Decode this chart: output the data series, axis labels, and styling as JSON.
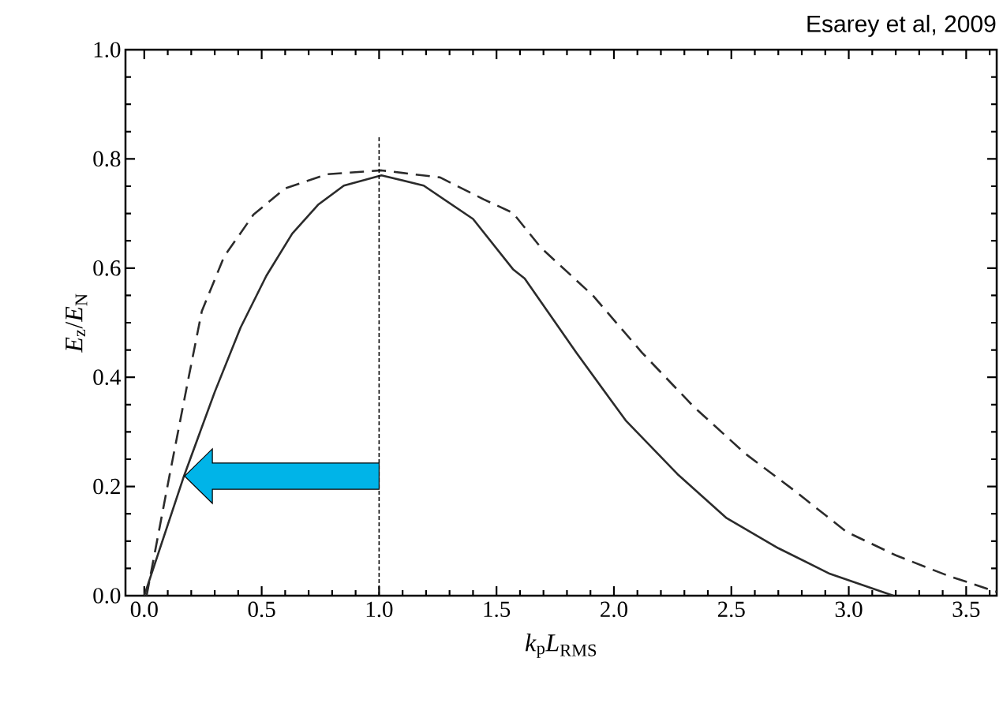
{
  "chart_data": {
    "type": "line",
    "xlabel": "*k*$_{p}$*L*$_{RMS}$",
    "ylabel": "*E*$_{z}$/*E*$_{N}$",
    "annotations": [
      "Esarey et al, 2009"
    ],
    "series": [
      {
        "color": "#2b2b2b",
        "line_style": "solid",
        "x": [
          0.0,
          0.169,
          0.3,
          0.41,
          0.52,
          0.63,
          0.74,
          0.85,
          1.01,
          1.19,
          1.4,
          1.57,
          1.62,
          1.84,
          2.05,
          2.27,
          2.48,
          2.7,
          2.92,
          3.19
        ],
        "values": [
          0.0,
          0.219,
          0.373,
          0.491,
          0.586,
          0.663,
          0.716,
          0.751,
          0.77,
          0.751,
          0.69,
          0.598,
          0.581,
          0.445,
          0.321,
          0.223,
          0.142,
          0.087,
          0.04,
          0.0
        ]
      },
      {
        "color": "#2b2b2b",
        "line_style": "dashed",
        "x": [
          0.01,
          0.107,
          0.19,
          0.245,
          0.34,
          0.465,
          0.6,
          0.78,
          1.01,
          1.26,
          1.445,
          1.57,
          1.69,
          1.91,
          2.12,
          2.34,
          2.56,
          2.77,
          2.99,
          3.2,
          3.42,
          3.63
        ],
        "values": [
          0.0,
          0.219,
          0.402,
          0.521,
          0.621,
          0.698,
          0.746,
          0.772,
          0.779,
          0.766,
          0.726,
          0.701,
          0.637,
          0.55,
          0.445,
          0.346,
          0.26,
          0.192,
          0.117,
          0.074,
          0.037,
          0.007
        ]
      }
    ],
    "ref_lines": [
      {
        "axis": "x",
        "value": 1.0,
        "color": "#000000",
        "line_style": "dashed"
      }
    ],
    "xlim": [
      -0.08,
      3.63
    ],
    "ylim": [
      0,
      1
    ],
    "xticks": [
      {
        "value": 0,
        "label": "0.0"
      },
      {
        "value": 0.1,
        "label": null
      },
      {
        "value": 0.2,
        "label": null
      },
      {
        "value": 0.3,
        "label": null
      },
      {
        "value": 0.4,
        "label": null
      },
      {
        "value": 0.5,
        "label": "0.5"
      },
      {
        "value": 0.6,
        "label": null
      },
      {
        "value": 0.7,
        "label": null
      },
      {
        "value": 0.8,
        "label": null
      },
      {
        "value": 0.9,
        "label": null
      },
      {
        "value": 1.0,
        "label": "1.0"
      },
      {
        "value": 1.1,
        "label": null
      },
      {
        "value": 1.2,
        "label": null
      },
      {
        "value": 1.3,
        "label": null
      },
      {
        "value": 1.4,
        "label": null
      },
      {
        "value": 1.5,
        "label": "1.5"
      },
      {
        "value": 1.6,
        "label": null
      },
      {
        "value": 1.7,
        "label": null
      },
      {
        "value": 1.8,
        "label": null
      },
      {
        "value": 1.9,
        "label": null
      },
      {
        "value": 2.0,
        "label": "2.0"
      },
      {
        "value": 2.1,
        "label": null
      },
      {
        "value": 2.2,
        "label": null
      },
      {
        "value": 2.3,
        "label": null
      },
      {
        "value": 2.4,
        "label": null
      },
      {
        "value": 2.5,
        "label": "2.5"
      },
      {
        "value": 2.6,
        "label": null
      },
      {
        "value": 2.7,
        "label": null
      },
      {
        "value": 2.8,
        "label": null
      },
      {
        "value": 2.9,
        "label": null
      },
      {
        "value": 3.0,
        "label": "3.0"
      },
      {
        "value": 3.1,
        "label": null
      },
      {
        "value": 3.2,
        "label": null
      },
      {
        "value": 3.3,
        "label": null
      },
      {
        "value": 3.4,
        "label": null
      },
      {
        "value": 3.5,
        "label": "3.5"
      },
      {
        "value": 3.6,
        "label": null
      }
    ],
    "yticks": [
      {
        "value": 0,
        "label": "0.0"
      },
      {
        "value": 0.05,
        "label": null
      },
      {
        "value": 0.1,
        "label": null
      },
      {
        "value": 0.15,
        "label": null
      },
      {
        "value": 0.2,
        "label": "0.2"
      },
      {
        "value": 0.25,
        "label": null
      },
      {
        "value": 0.3,
        "label": null
      },
      {
        "value": 0.35,
        "label": null
      },
      {
        "value": 0.4,
        "label": "0.4"
      },
      {
        "value": 0.45,
        "label": null
      },
      {
        "value": 0.5,
        "label": null
      },
      {
        "value": 0.55,
        "label": null
      },
      {
        "value": 0.6,
        "label": "0.6"
      },
      {
        "value": 0.65,
        "label": null
      },
      {
        "value": 0.7,
        "label": null
      },
      {
        "value": 0.75,
        "label": null
      },
      {
        "value": 0.8,
        "label": "0.8"
      },
      {
        "value": 0.85,
        "label": null
      },
      {
        "value": 0.9,
        "label": null
      },
      {
        "value": 0.95,
        "label": null
      },
      {
        "value": 1.0,
        "label": "1.0"
      }
    ],
    "marker": "none"
  }
}
